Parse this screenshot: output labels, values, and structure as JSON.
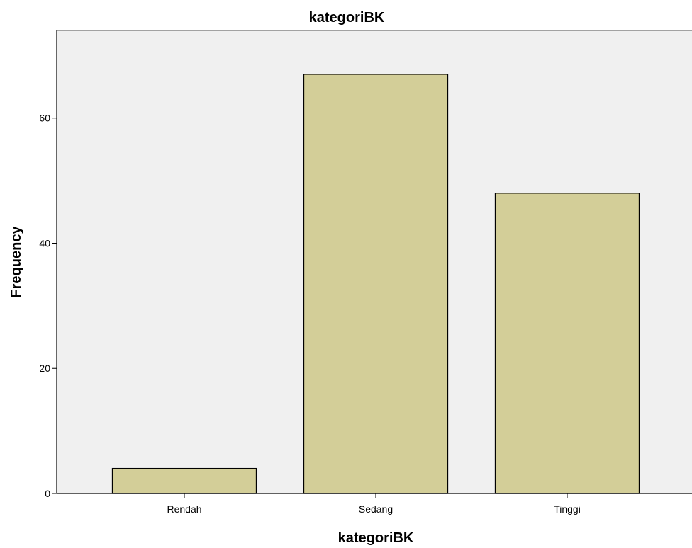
{
  "chart_data": {
    "type": "bar",
    "title": "kategoriBK",
    "xlabel": "kategoriBK",
    "ylabel": "Frequency",
    "categories": [
      "Rendah",
      "Sedang",
      "Tinggi"
    ],
    "values": [
      4,
      67,
      48
    ],
    "ylim": [
      0,
      74
    ],
    "yticks": [
      0,
      20,
      40,
      60
    ],
    "ytick_labels": [
      "0",
      "20",
      "40",
      "60"
    ],
    "grid": false,
    "legend": "none",
    "colors": {
      "bar_fill": "#d3ce98",
      "bar_stroke": "#000000",
      "plot_background": "#f0f0f0",
      "axis": "#000000"
    }
  }
}
